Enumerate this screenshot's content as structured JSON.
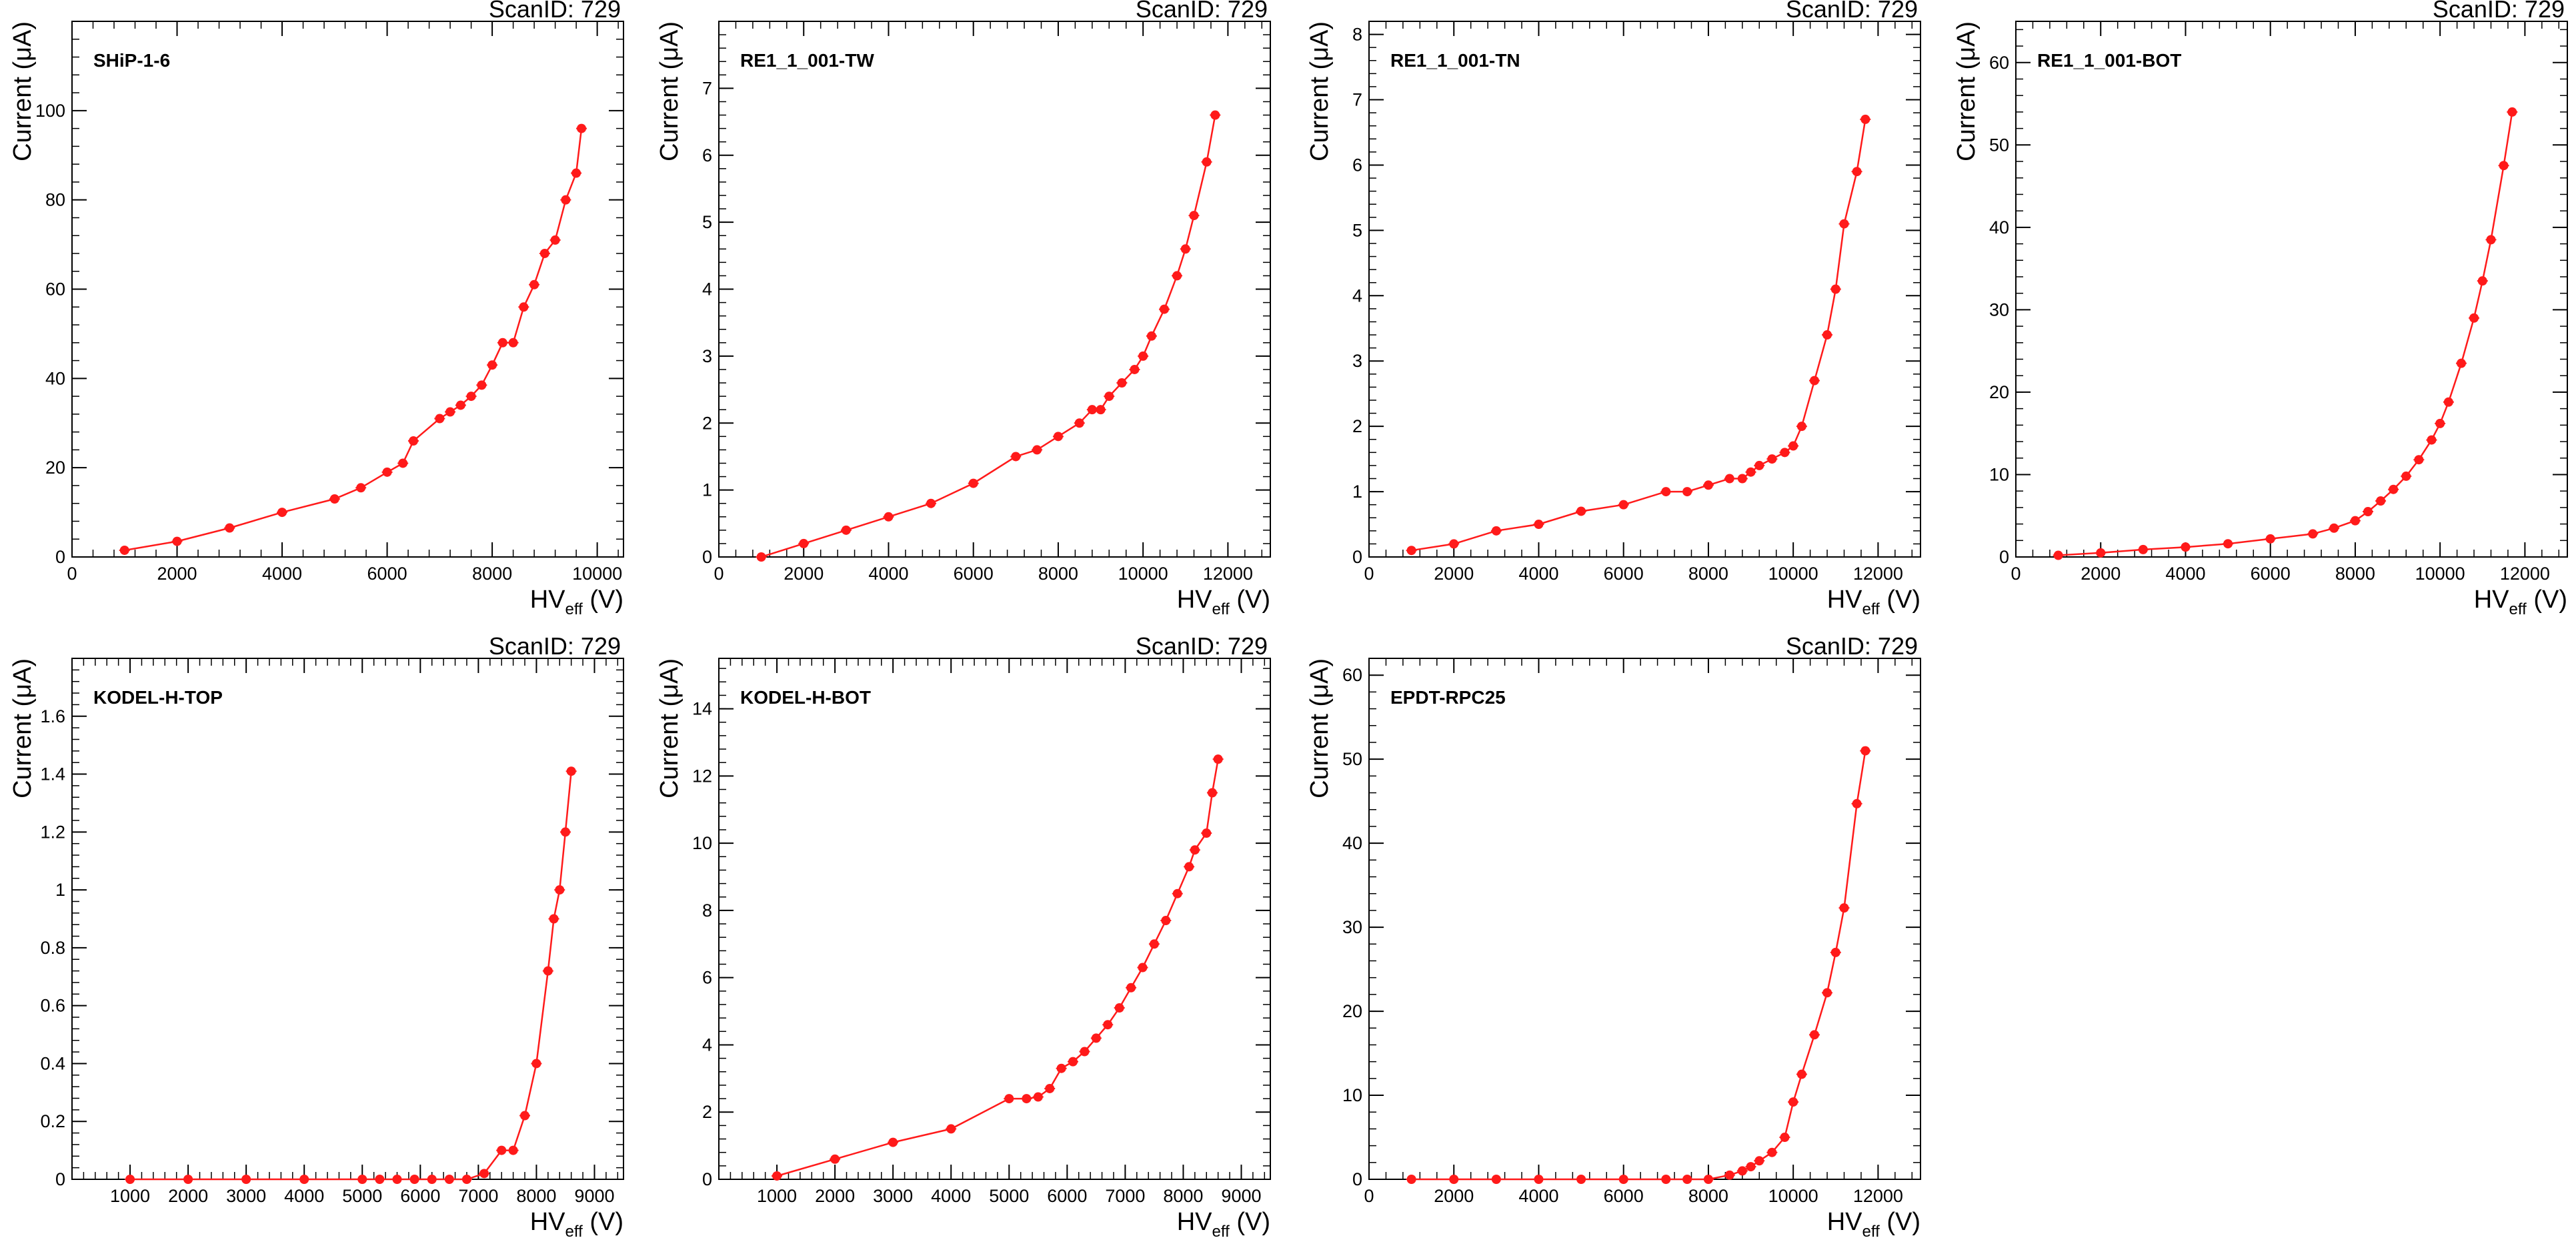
{
  "chart_data": [
    {
      "type": "line",
      "title": "SHiP-1-6",
      "scan_label": "ScanID: 729",
      "xlabel": "HV",
      "xlabel_sub": "eff",
      "xlabel_unit": " (V)",
      "ylabel": "Current (μA)",
      "xlim": [
        0,
        10500
      ],
      "ylim": [
        0,
        120
      ],
      "xticks": [
        0,
        2000,
        4000,
        6000,
        8000,
        10000
      ],
      "xtick_labels": [
        "0",
        "2000",
        "4000",
        "6000",
        "8000",
        "10000"
      ],
      "yticks": [
        0,
        20,
        40,
        60,
        80,
        100
      ],
      "ytick_labels": [
        "0",
        "20",
        "40",
        "60",
        "80",
        "100"
      ],
      "color": "#ff1a1a",
      "series": [
        {
          "x": [
            1000,
            2000,
            3000,
            4000,
            5000,
            5500,
            6000,
            6300,
            6500,
            7000,
            7200,
            7400,
            7600,
            7800,
            8000,
            8200,
            8400,
            8600,
            8800,
            9000,
            9200,
            9400,
            9600,
            9700
          ],
          "y": [
            1.5,
            3.5,
            6.5,
            10,
            13,
            15.5,
            19,
            21,
            26,
            31,
            32.5,
            34,
            36,
            38.5,
            43,
            48,
            48,
            56,
            61,
            68,
            71,
            80,
            86,
            96
          ]
        }
      ]
    },
    {
      "type": "line",
      "title": "RE1_1_001-TW",
      "scan_label": "ScanID: 729",
      "xlabel": "HV",
      "xlabel_sub": "eff",
      "xlabel_unit": " (V)",
      "ylabel": "Current (μA)",
      "xlim": [
        0,
        13000
      ],
      "ylim": [
        0,
        8
      ],
      "xticks": [
        0,
        2000,
        4000,
        6000,
        8000,
        10000,
        12000
      ],
      "xtick_labels": [
        "0",
        "2000",
        "4000",
        "6000",
        "8000",
        "10000",
        "12000"
      ],
      "yticks": [
        0,
        1,
        2,
        3,
        4,
        5,
        6,
        7
      ],
      "ytick_labels": [
        "0",
        "1",
        "2",
        "3",
        "4",
        "5",
        "6",
        "7"
      ],
      "color": "#ff1a1a",
      "series": [
        {
          "x": [
            1000,
            2000,
            3000,
            4000,
            5000,
            6000,
            7000,
            7500,
            8000,
            8500,
            8800,
            9000,
            9200,
            9500,
            9800,
            10000,
            10200,
            10500,
            10800,
            11000,
            11200,
            11500,
            11700
          ],
          "y": [
            0,
            0.2,
            0.4,
            0.6,
            0.8,
            1.1,
            1.5,
            1.6,
            1.8,
            2.0,
            2.2,
            2.2,
            2.4,
            2.6,
            2.8,
            3.0,
            3.3,
            3.7,
            4.2,
            4.6,
            5.1,
            5.9,
            6.6
          ]
        }
      ]
    },
    {
      "type": "line",
      "title": "RE1_1_001-TN",
      "scan_label": "ScanID: 729",
      "xlabel": "HV",
      "xlabel_sub": "eff",
      "xlabel_unit": " (V)",
      "ylabel": "Current (μA)",
      "xlim": [
        0,
        13000
      ],
      "ylim": [
        0,
        8.2
      ],
      "xticks": [
        0,
        2000,
        4000,
        6000,
        8000,
        10000,
        12000
      ],
      "xtick_labels": [
        "0",
        "2000",
        "4000",
        "6000",
        "8000",
        "10000",
        "12000"
      ],
      "yticks": [
        0,
        1,
        2,
        3,
        4,
        5,
        6,
        7,
        8
      ],
      "ytick_labels": [
        "0",
        "1",
        "2",
        "3",
        "4",
        "5",
        "6",
        "7",
        "8"
      ],
      "color": "#ff1a1a",
      "series": [
        {
          "x": [
            1000,
            2000,
            3000,
            4000,
            5000,
            6000,
            7000,
            7500,
            8000,
            8500,
            8800,
            9000,
            9200,
            9500,
            9800,
            10000,
            10200,
            10500,
            10800,
            11000,
            11200,
            11500,
            11700
          ],
          "y": [
            0.1,
            0.2,
            0.4,
            0.5,
            0.7,
            0.8,
            1.0,
            1.0,
            1.1,
            1.2,
            1.2,
            1.3,
            1.4,
            1.5,
            1.6,
            1.7,
            2.0,
            2.7,
            3.4,
            4.1,
            5.1,
            5.9,
            6.7
          ]
        }
      ]
    },
    {
      "type": "line",
      "title": "RE1_1_001-BOT",
      "scan_label": "ScanID: 729",
      "xlabel": "HV",
      "xlabel_sub": "eff",
      "xlabel_unit": " (V)",
      "ylabel": "Current (μA)",
      "xlim": [
        0,
        13000
      ],
      "ylim": [
        0,
        65
      ],
      "xticks": [
        0,
        2000,
        4000,
        6000,
        8000,
        10000,
        12000
      ],
      "xtick_labels": [
        "0",
        "2000",
        "4000",
        "6000",
        "8000",
        "10000",
        "12000"
      ],
      "yticks": [
        0,
        10,
        20,
        30,
        40,
        50,
        60
      ],
      "ytick_labels": [
        "0",
        "10",
        "20",
        "30",
        "40",
        "50",
        "60"
      ],
      "color": "#ff1a1a",
      "series": [
        {
          "x": [
            1000,
            2000,
            3000,
            4000,
            5000,
            6000,
            7000,
            7500,
            8000,
            8300,
            8600,
            8900,
            9200,
            9500,
            9800,
            10000,
            10200,
            10500,
            10800,
            11000,
            11200,
            11500,
            11700
          ],
          "y": [
            0.2,
            0.5,
            0.9,
            1.2,
            1.6,
            2.2,
            2.8,
            3.5,
            4.4,
            5.5,
            6.8,
            8.2,
            9.8,
            11.8,
            14.2,
            16.2,
            18.8,
            23.5,
            29,
            33.5,
            38.5,
            47.5,
            54
          ]
        }
      ]
    },
    {
      "type": "line",
      "title": "KODEL-H-TOP",
      "scan_label": "ScanID: 729",
      "xlabel": "HV",
      "xlabel_sub": "eff",
      "xlabel_unit": " (V)",
      "ylabel": "Current (μA)",
      "xlim": [
        0,
        9500
      ],
      "ylim": [
        0,
        1.8
      ],
      "xticks": [
        0,
        1000,
        2000,
        3000,
        4000,
        5000,
        6000,
        7000,
        8000,
        9000
      ],
      "xtick_labels": [
        "",
        "1000",
        "2000",
        "3000",
        "4000",
        "5000",
        "6000",
        "7000",
        "8000",
        "9000"
      ],
      "yticks": [
        0,
        0.2,
        0.4,
        0.6,
        0.8,
        1.0,
        1.2,
        1.4,
        1.6
      ],
      "ytick_labels": [
        "0",
        "0.2",
        "0.4",
        "0.6",
        "0.8",
        "1",
        "1.2",
        "1.4",
        "1.6"
      ],
      "color": "#ff1a1a",
      "series": [
        {
          "x": [
            1000,
            2000,
            3000,
            4000,
            5000,
            5300,
            5600,
            5900,
            6200,
            6500,
            6800,
            7100,
            7400,
            7600,
            7800,
            8000,
            8200,
            8300,
            8400,
            8500,
            8600
          ],
          "y": [
            0,
            0,
            0,
            0,
            0,
            0,
            0,
            0,
            0,
            0,
            0,
            0.02,
            0.1,
            0.1,
            0.22,
            0.4,
            0.72,
            0.9,
            1.0,
            1.2,
            1.41
          ]
        }
      ]
    },
    {
      "type": "line",
      "title": "KODEL-H-BOT",
      "scan_label": "ScanID: 729",
      "xlabel": "HV",
      "xlabel_sub": "eff",
      "xlabel_unit": " (V)",
      "ylabel": "Current (μA)",
      "xlim": [
        0,
        9500
      ],
      "ylim": [
        0,
        15.5
      ],
      "xticks": [
        0,
        1000,
        2000,
        3000,
        4000,
        5000,
        6000,
        7000,
        8000,
        9000
      ],
      "xtick_labels": [
        "",
        "1000",
        "2000",
        "3000",
        "4000",
        "5000",
        "6000",
        "7000",
        "8000",
        "9000"
      ],
      "yticks": [
        0,
        2,
        4,
        6,
        8,
        10,
        12,
        14
      ],
      "ytick_labels": [
        "0",
        "2",
        "4",
        "6",
        "8",
        "10",
        "12",
        "14"
      ],
      "color": "#ff1a1a",
      "series": [
        {
          "x": [
            1000,
            2000,
            3000,
            4000,
            5000,
            5300,
            5500,
            5700,
            5900,
            6100,
            6300,
            6500,
            6700,
            6900,
            7100,
            7300,
            7500,
            7700,
            7900,
            8100,
            8200,
            8400,
            8500,
            8600
          ],
          "y": [
            0.1,
            0.6,
            1.1,
            1.5,
            2.4,
            2.4,
            2.45,
            2.7,
            3.3,
            3.5,
            3.8,
            4.2,
            4.6,
            5.1,
            5.7,
            6.3,
            7.0,
            7.7,
            8.5,
            9.3,
            9.8,
            10.3,
            11.5,
            12.5
          ]
        }
      ]
    },
    {
      "type": "line",
      "title": "EPDT-RPC25",
      "scan_label": "ScanID: 729",
      "xlabel": "HV",
      "xlabel_sub": "eff",
      "xlabel_unit": " (V)",
      "ylabel": "Current (μA)",
      "xlim": [
        0,
        13000
      ],
      "ylim": [
        0,
        62
      ],
      "xticks": [
        0,
        2000,
        4000,
        6000,
        8000,
        10000,
        12000
      ],
      "xtick_labels": [
        "0",
        "2000",
        "4000",
        "6000",
        "8000",
        "10000",
        "12000"
      ],
      "yticks": [
        0,
        10,
        20,
        30,
        40,
        50,
        60
      ],
      "ytick_labels": [
        "0",
        "10",
        "20",
        "30",
        "40",
        "50",
        "60"
      ],
      "color": "#ff1a1a",
      "series": [
        {
          "x": [
            1000,
            2000,
            3000,
            4000,
            5000,
            6000,
            7000,
            7500,
            8000,
            8500,
            8800,
            9000,
            9200,
            9500,
            9800,
            10000,
            10200,
            10500,
            10800,
            11000,
            11200,
            11500,
            11700
          ],
          "y": [
            0,
            0,
            0,
            0,
            0,
            0,
            0,
            0,
            0,
            0.5,
            1.0,
            1.5,
            2.2,
            3.2,
            5.0,
            9.2,
            12.5,
            17.2,
            22.2,
            27.0,
            32.3,
            44.7,
            51
          ]
        }
      ]
    }
  ]
}
